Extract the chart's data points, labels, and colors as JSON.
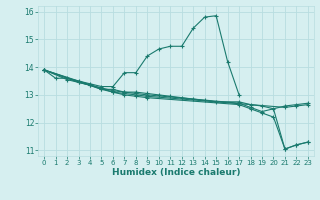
{
  "title": "",
  "xlabel": "Humidex (Indice chaleur)",
  "ylabel": "",
  "xlim": [
    -0.5,
    23.5
  ],
  "ylim": [
    10.8,
    16.2
  ],
  "yticks": [
    11,
    12,
    13,
    14,
    15,
    16
  ],
  "xticks": [
    0,
    1,
    2,
    3,
    4,
    5,
    6,
    7,
    8,
    9,
    10,
    11,
    12,
    13,
    14,
    15,
    16,
    17,
    18,
    19,
    20,
    21,
    22,
    23
  ],
  "bg_color": "#d6eff0",
  "grid_color": "#b8dde0",
  "line_color": "#1a7a6e",
  "lines": [
    {
      "x": [
        0,
        1,
        2,
        3,
        4,
        5,
        6,
        7,
        8,
        9,
        10,
        11,
        12,
        13,
        14,
        15,
        16,
        17
      ],
      "y": [
        13.9,
        13.6,
        13.6,
        13.5,
        13.4,
        13.3,
        13.3,
        13.8,
        13.8,
        14.4,
        14.65,
        14.75,
        14.75,
        15.4,
        15.8,
        15.85,
        14.2,
        13.0
      ]
    },
    {
      "x": [
        0,
        2,
        3,
        4,
        5,
        6,
        7,
        8,
        9,
        10,
        11,
        12,
        13,
        14,
        15,
        17,
        18,
        19,
        20,
        21,
        22,
        23
      ],
      "y": [
        13.9,
        13.55,
        13.45,
        13.35,
        13.2,
        13.2,
        13.1,
        13.1,
        13.05,
        13.0,
        12.95,
        12.9,
        12.85,
        12.8,
        12.75,
        12.75,
        12.65,
        12.6,
        12.5,
        11.05,
        11.2,
        11.3
      ]
    },
    {
      "x": [
        0,
        3,
        4,
        5,
        6,
        7,
        8,
        9,
        17,
        18,
        19,
        21,
        22,
        23
      ],
      "y": [
        13.9,
        13.45,
        13.35,
        13.25,
        13.15,
        13.1,
        13.05,
        13.0,
        12.7,
        12.55,
        12.4,
        12.6,
        12.65,
        12.7
      ]
    },
    {
      "x": [
        0,
        5,
        6,
        7,
        8,
        9,
        21,
        22,
        23
      ],
      "y": [
        13.9,
        13.2,
        13.1,
        13.05,
        13.0,
        12.95,
        12.55,
        12.6,
        12.65
      ]
    },
    {
      "x": [
        0,
        6,
        7,
        8,
        9,
        17,
        18,
        19,
        20,
        21,
        22,
        23
      ],
      "y": [
        13.9,
        13.1,
        13.0,
        12.95,
        12.9,
        12.65,
        12.5,
        12.35,
        12.2,
        11.05,
        11.2,
        11.3
      ]
    }
  ]
}
